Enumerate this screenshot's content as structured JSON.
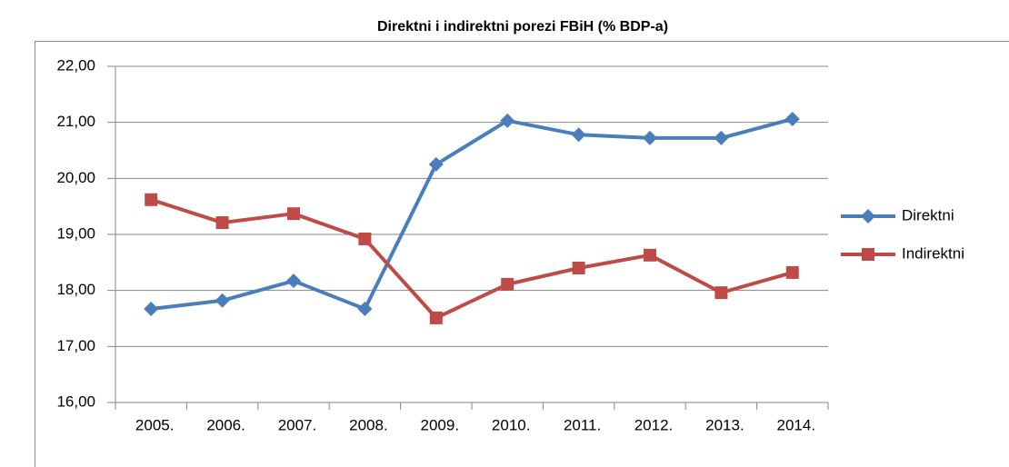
{
  "chart_data": {
    "type": "line",
    "title": "Direktni i indirektni porezi FBiH (% BDP-a)",
    "categories": [
      "2005.",
      "2006.",
      "2007.",
      "2008.",
      "2009.",
      "2010.",
      "2011.",
      "2012.",
      "2013.",
      "2014."
    ],
    "series": [
      {
        "name": "Direktni",
        "color": "#4a7ebb",
        "marker": "diamond",
        "values": [
          17.67,
          17.82,
          18.17,
          17.67,
          20.25,
          21.03,
          20.78,
          20.72,
          20.72,
          21.06
        ]
      },
      {
        "name": "Indirektni",
        "color": "#be4b48",
        "marker": "square",
        "values": [
          19.62,
          19.21,
          19.37,
          18.92,
          17.51,
          18.11,
          18.4,
          18.63,
          17.96,
          18.32
        ]
      }
    ],
    "ylim": [
      16,
      22
    ],
    "yticks": [
      {
        "value": 16,
        "label": "16,00"
      },
      {
        "value": 17,
        "label": "17,00"
      },
      {
        "value": 18,
        "label": "18,00"
      },
      {
        "value": 19,
        "label": "19,00"
      },
      {
        "value": 20,
        "label": "20,00"
      },
      {
        "value": 21,
        "label": "21,00"
      },
      {
        "value": 22,
        "label": "22,00"
      }
    ],
    "grid": true,
    "legend": "right"
  }
}
